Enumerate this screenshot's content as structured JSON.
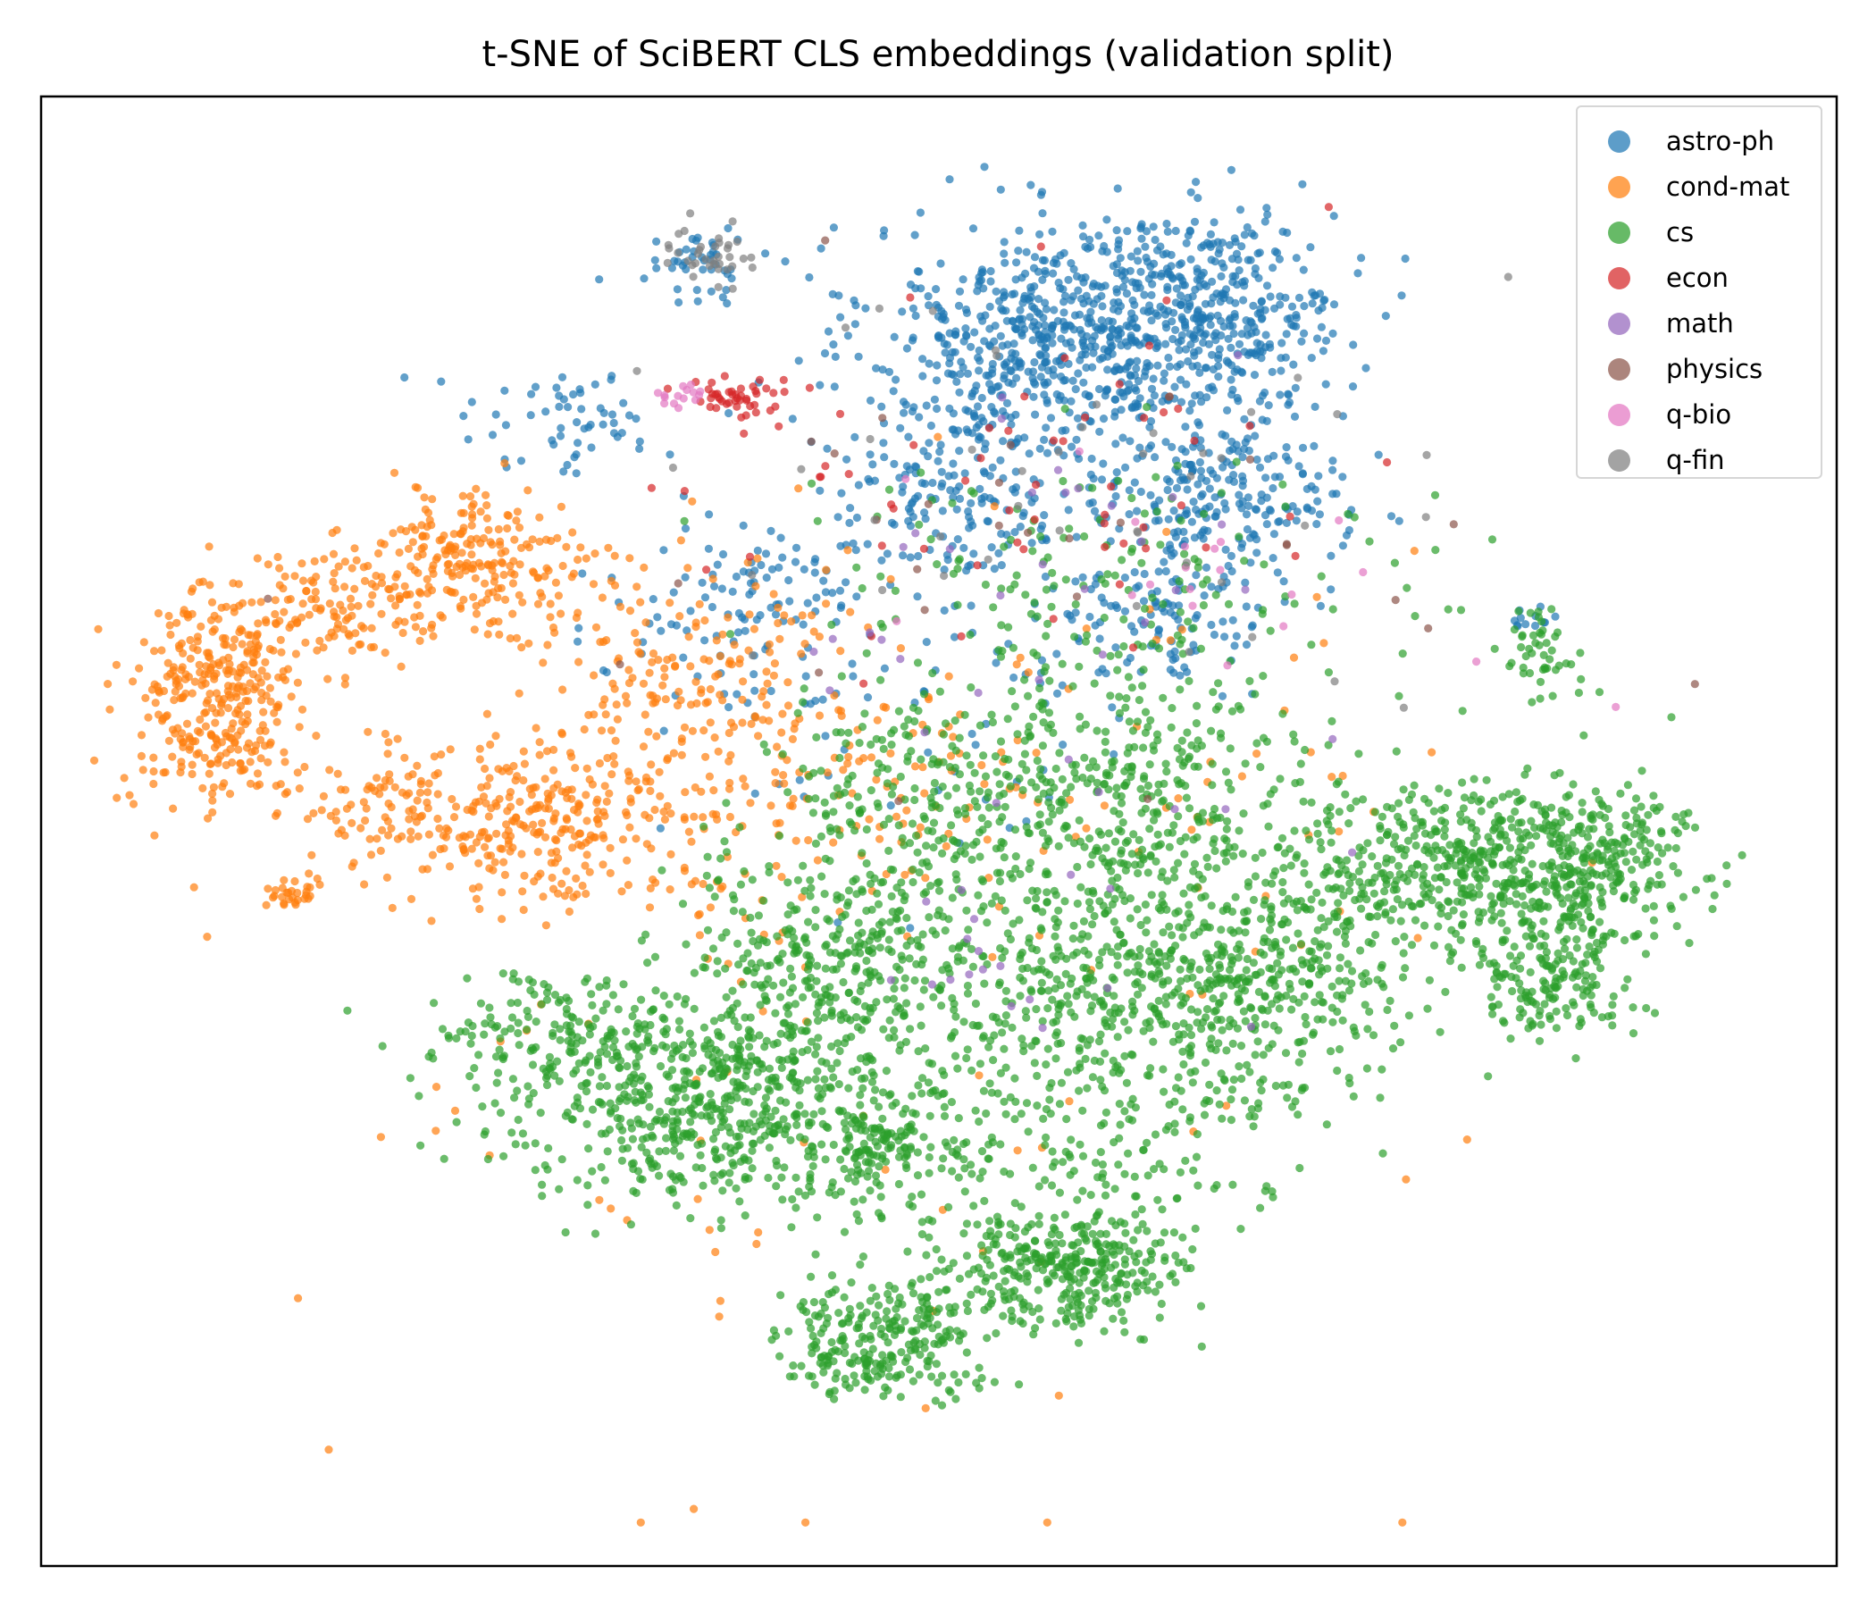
{
  "chart_data": {
    "type": "scatter",
    "title": "t-SNE of SciBERT CLS embeddings (validation split)",
    "xlabel": "",
    "ylabel": "",
    "xlim": [
      -100,
      100
    ],
    "ylim": [
      -100,
      100
    ],
    "ticks": false,
    "grid": false,
    "legend_position": "top-right",
    "marker_alpha": 0.7,
    "series": [
      {
        "name": "astro-ph",
        "color": "#1f77b4",
        "clusters": [
          {
            "cx": 12,
            "cy": 70,
            "sx": 10,
            "sy": 8,
            "n": 520
          },
          {
            "cx": 31,
            "cy": 74,
            "sx": 8,
            "sy": 7,
            "n": 420
          },
          {
            "cx": 33,
            "cy": 48,
            "sx": 7,
            "sy": 6,
            "n": 220
          },
          {
            "cx": 26,
            "cy": 32,
            "sx": 7,
            "sy": 6,
            "n": 120
          },
          {
            "cx": 3,
            "cy": 48,
            "sx": 9,
            "sy": 7,
            "n": 200
          },
          {
            "cx": -27,
            "cy": 80,
            "sx": 3,
            "sy": 2,
            "n": 45
          },
          {
            "cx": -23,
            "cy": 32,
            "sx": 7,
            "sy": 7,
            "n": 90
          },
          {
            "cx": -43,
            "cy": 58,
            "sx": 7,
            "sy": 4,
            "n": 60
          },
          {
            "cx": 68,
            "cy": 30,
            "sx": 1.5,
            "sy": 1,
            "n": 12
          },
          {
            "cx": -5,
            "cy": 20,
            "sx": 20,
            "sy": 15,
            "n": 80
          }
        ]
      },
      {
        "name": "cond-mat",
        "color": "#ff7f0e",
        "clusters": [
          {
            "cx": -84,
            "cy": 18,
            "sx": 5,
            "sy": 8,
            "n": 330
          },
          {
            "cx": -54,
            "cy": 38,
            "sx": 7,
            "sy": 5,
            "n": 230
          },
          {
            "cx": -47,
            "cy": 2,
            "sx": 9,
            "sy": 6,
            "n": 290
          },
          {
            "cx": -30,
            "cy": 22,
            "sx": 9,
            "sy": 9,
            "n": 170
          },
          {
            "cx": -70,
            "cy": 32,
            "sx": 6,
            "sy": 4,
            "n": 110
          },
          {
            "cx": -65,
            "cy": 4,
            "sx": 4,
            "sy": 4,
            "n": 60
          },
          {
            "cx": -75,
            "cy": -9,
            "sx": 1.5,
            "sy": 1,
            "n": 30
          },
          {
            "cx": -15,
            "cy": 4,
            "sx": 12,
            "sy": 9,
            "n": 120
          },
          {
            "cx": 5,
            "cy": 10,
            "sx": 30,
            "sy": 20,
            "n": 90
          },
          {
            "cx": -10,
            "cy": -40,
            "sx": 30,
            "sy": 30,
            "n": 60
          }
        ]
      },
      {
        "name": "cs",
        "color": "#2ca02c",
        "clusters": [
          {
            "cx": -25,
            "cy": -38,
            "sx": 12,
            "sy": 7,
            "n": 640
          },
          {
            "cx": -12,
            "cy": -18,
            "sx": 10,
            "sy": 8,
            "n": 380
          },
          {
            "cx": 20,
            "cy": -22,
            "sx": 10,
            "sy": 9,
            "n": 420
          },
          {
            "cx": 40,
            "cy": -20,
            "sx": 8,
            "sy": 9,
            "n": 340
          },
          {
            "cx": 62,
            "cy": -5,
            "sx": 10,
            "sy": 6,
            "n": 480
          },
          {
            "cx": 76,
            "cy": -5,
            "sx": 6,
            "sy": 6,
            "n": 220
          },
          {
            "cx": 70,
            "cy": -22,
            "sx": 5,
            "sy": 4,
            "n": 160
          },
          {
            "cx": 20,
            "cy": 5,
            "sx": 12,
            "sy": 9,
            "n": 420
          },
          {
            "cx": -5,
            "cy": 5,
            "sx": 8,
            "sy": 8,
            "n": 150
          },
          {
            "cx": 15,
            "cy": -62,
            "sx": 7,
            "sy": 4,
            "n": 330
          },
          {
            "cx": -7,
            "cy": -72,
            "sx": 6,
            "sy": 4,
            "n": 260
          },
          {
            "cx": 10,
            "cy": -45,
            "sx": 15,
            "sy": 8,
            "n": 240
          },
          {
            "cx": 70,
            "cy": 25,
            "sx": 2,
            "sy": 3,
            "n": 45
          },
          {
            "cx": 20,
            "cy": 35,
            "sx": 18,
            "sy": 10,
            "n": 170
          },
          {
            "cx": -7,
            "cy": -44,
            "sx": 3,
            "sy": 2,
            "n": 70
          },
          {
            "cx": -45,
            "cy": -30,
            "sx": 8,
            "sy": 5,
            "n": 140
          }
        ]
      },
      {
        "name": "econ",
        "color": "#d62728",
        "clusters": [
          {
            "cx": -24,
            "cy": 61,
            "sx": 2.5,
            "sy": 2,
            "n": 45
          },
          {
            "cx": 5,
            "cy": 50,
            "sx": 20,
            "sy": 15,
            "n": 60
          }
        ]
      },
      {
        "name": "math",
        "color": "#9467bd",
        "clusters": [
          {
            "cx": 15,
            "cy": 20,
            "sx": 18,
            "sy": 20,
            "n": 45
          },
          {
            "cx": 5,
            "cy": -20,
            "sx": 3,
            "sy": 4,
            "n": 10
          }
        ]
      },
      {
        "name": "physics",
        "color": "#8c564b",
        "clusters": [
          {
            "cx": 10,
            "cy": 40,
            "sx": 25,
            "sy": 20,
            "n": 30
          }
        ]
      },
      {
        "name": "q-bio",
        "color": "#e377c2",
        "clusters": [
          {
            "cx": -30,
            "cy": 62,
            "sx": 1.5,
            "sy": 1,
            "n": 15
          },
          {
            "cx": 35,
            "cy": 35,
            "sx": 15,
            "sy": 8,
            "n": 20
          }
        ]
      },
      {
        "name": "q-fin",
        "color": "#7f7f7f",
        "clusters": [
          {
            "cx": -27,
            "cy": 82,
            "sx": 3,
            "sy": 2,
            "n": 35
          },
          {
            "cx": 10,
            "cy": 50,
            "sx": 25,
            "sy": 15,
            "n": 45
          }
        ]
      }
    ]
  }
}
